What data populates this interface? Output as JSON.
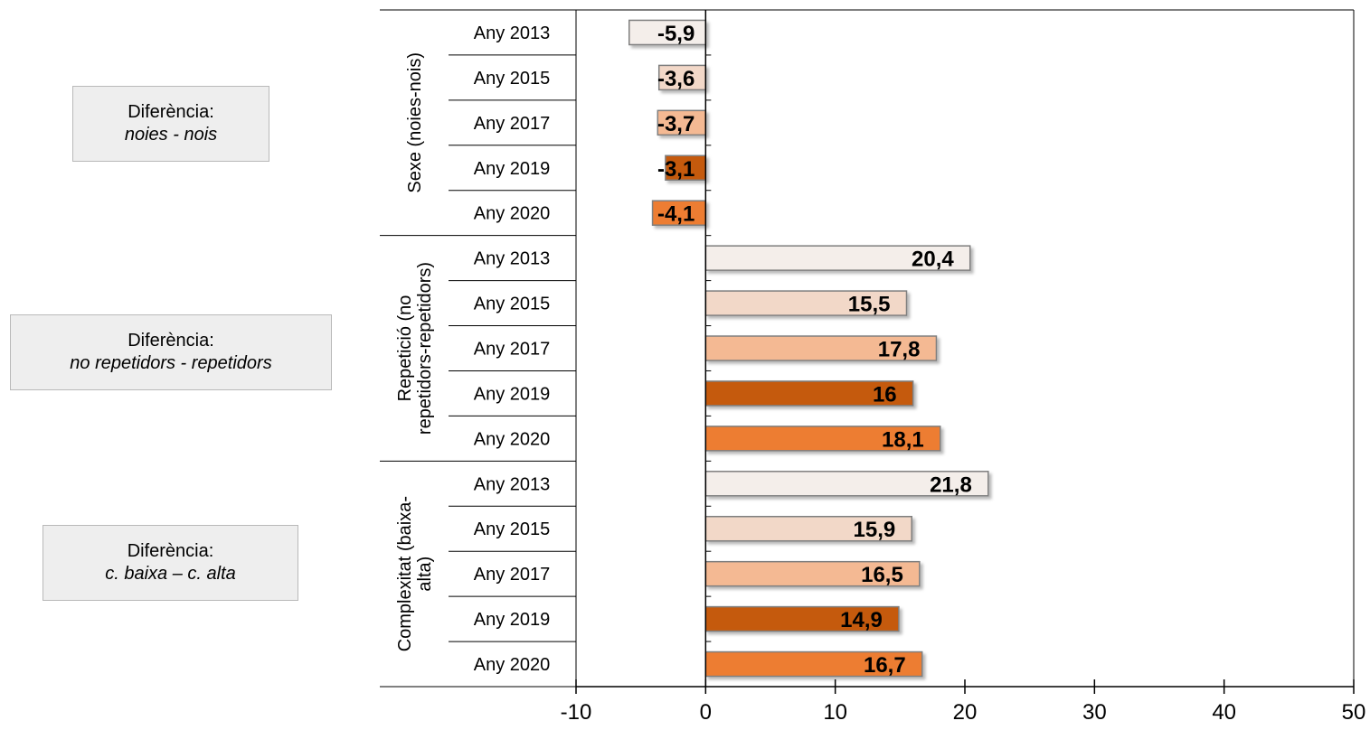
{
  "notes": [
    {
      "line1": "Diferència:",
      "line2": "noies - nois"
    },
    {
      "line1": "Diferència:",
      "line2": "no repetidors - repetidors"
    },
    {
      "line1": "Diferència:",
      "line2": "c. baixa – c. alta"
    }
  ],
  "chart_data": {
    "type": "bar",
    "orientation": "horizontal",
    "title": "",
    "xlabel": "",
    "ylabel": "",
    "xlim": [
      -10,
      50
    ],
    "x_ticks": [
      "-10",
      "0",
      "10",
      "20",
      "30",
      "40",
      "50"
    ],
    "grid": false,
    "legend": "none",
    "groups": [
      {
        "name": "Sexe (noies-nois)",
        "name_lines": [
          "Sexe (noies-nois)"
        ],
        "categories": [
          "Any 2013",
          "Any 2015",
          "Any 2017",
          "Any 2019",
          "Any 2020"
        ],
        "values": [
          -5.9,
          -3.6,
          -3.7,
          -3.1,
          -4.1
        ],
        "labels": [
          "-5,9",
          "-3,6",
          "-3,7",
          "-3,1",
          "-4,1"
        ]
      },
      {
        "name": "Repetició (no repetidors-repetidors)",
        "name_lines": [
          "Repetició (no",
          "repetidors-repetidors)"
        ],
        "categories": [
          "Any 2013",
          "Any 2015",
          "Any 2017",
          "Any 2019",
          "Any 2020"
        ],
        "values": [
          20.4,
          15.5,
          17.8,
          16,
          18.1
        ],
        "labels": [
          "20,4",
          "15,5",
          "17,8",
          "16",
          "18,1"
        ]
      },
      {
        "name": "Complexitat (baixa-alta)",
        "name_lines": [
          "Complexitat (baixa-",
          "alta)"
        ],
        "categories": [
          "Any 2013",
          "Any 2015",
          "Any 2017",
          "Any 2019",
          "Any 2020"
        ],
        "values": [
          21.8,
          15.9,
          16.5,
          14.9,
          16.7
        ],
        "labels": [
          "21,8",
          "15,9",
          "16,5",
          "14,9",
          "16,7"
        ]
      }
    ],
    "year_colors": [
      "#f4eeea",
      "#f2d8c8",
      "#f4b993",
      "#c55a11",
      "#ed7d31"
    ]
  }
}
